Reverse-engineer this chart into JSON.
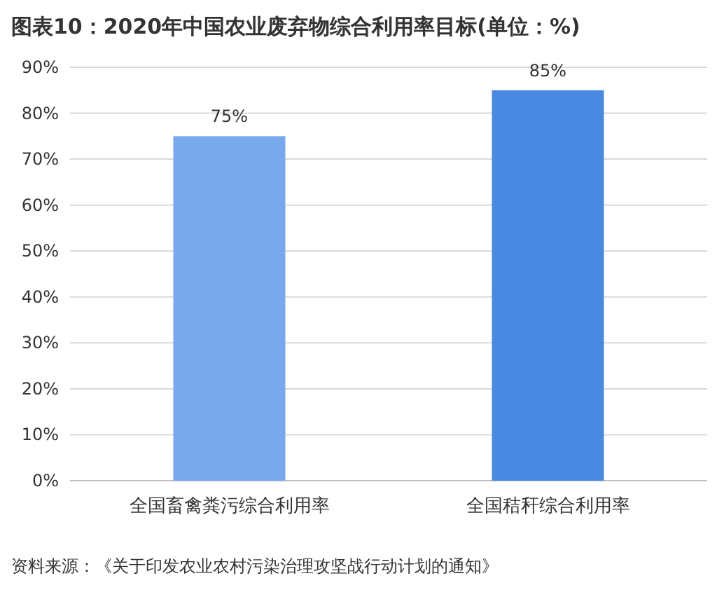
{
  "chart_data": {
    "type": "bar",
    "title": "图表10：2020年中国农业废弃物综合利用率目标(单位：%)",
    "categories": [
      "全国畜禽粪污综合利用率",
      "全国秸秆综合利用率"
    ],
    "values": [
      75,
      85
    ],
    "colors": [
      "#78a9ec",
      "#4a89e2"
    ],
    "value_labels": [
      "75%",
      "85%"
    ],
    "ylim": [
      0,
      90
    ],
    "yticks": [
      {
        "value": 0,
        "label": "0%"
      },
      {
        "value": 10,
        "label": "10%"
      },
      {
        "value": 20,
        "label": "20%"
      },
      {
        "value": 30,
        "label": "30%"
      },
      {
        "value": 40,
        "label": "40%"
      },
      {
        "value": 50,
        "label": "50%"
      },
      {
        "value": 60,
        "label": "60%"
      },
      {
        "value": 70,
        "label": "70%"
      },
      {
        "value": 80,
        "label": "80%"
      },
      {
        "value": 90,
        "label": "90%"
      }
    ],
    "grid": "y",
    "annotations": [
      "资料来源：《关于印发农业农村污染治理攻坚战行动计划的通知》"
    ]
  }
}
